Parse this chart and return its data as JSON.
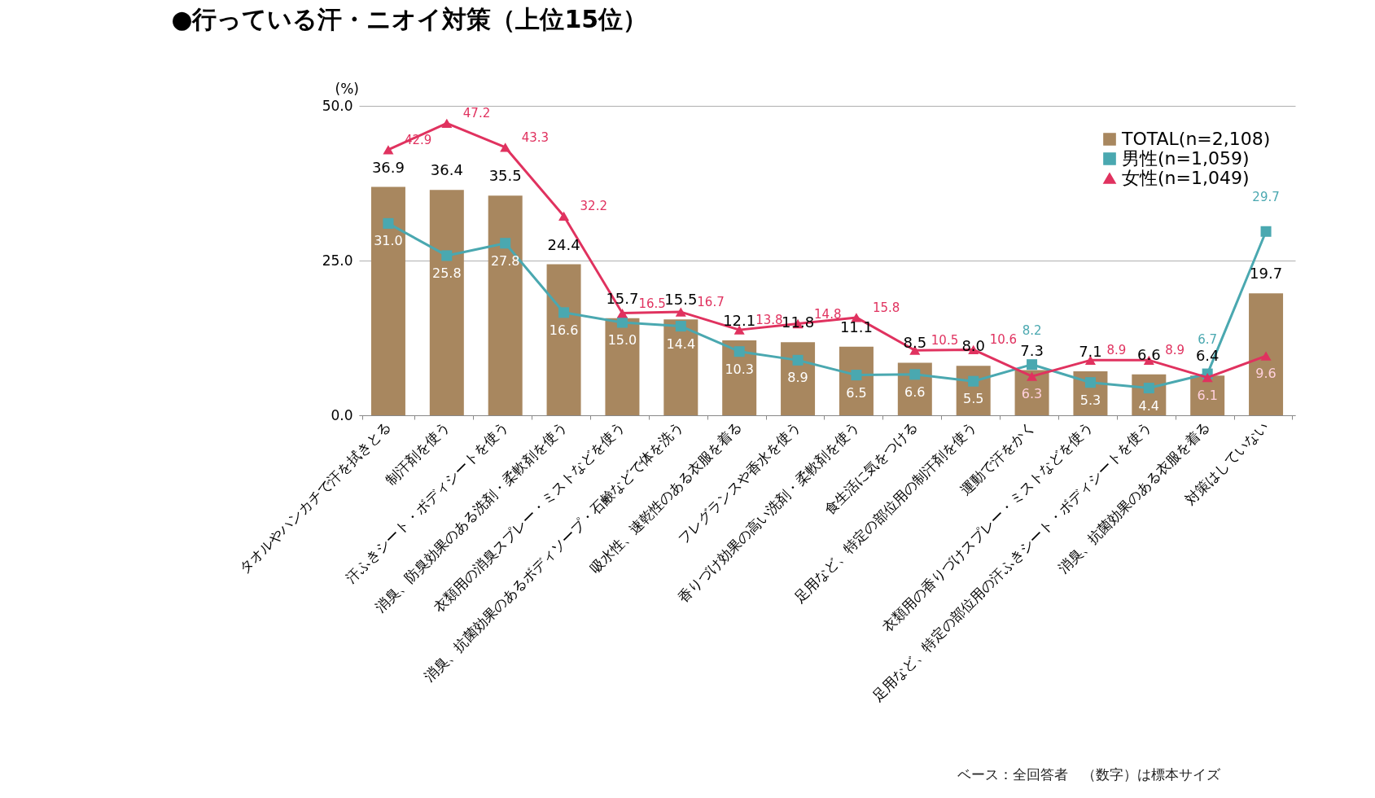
{
  "chart_data": {
    "type": "bar",
    "title": "●行っている汗・ニオイ対策（上位15位）",
    "ylabel": "(%)",
    "categories": [
      "タオルやハンカチで汗を拭きとる",
      "制汗剤を使う",
      "汗ふきシート・ボディシートを使う",
      "消臭、防臭効果のある洗剤・柔軟剤を使う",
      "衣類用の消臭スプレー・ミストなどを使う",
      "消臭、抗菌効果のあるボディソープ・石鹸などで体を洗う",
      "吸水性、速乾性のある衣服を着る",
      "フレグランスや香水を使う",
      "香りづけ効果の高い洗剤・柔軟剤を使う",
      "食生活に気をつける",
      "足用など、特定の部位用の制汗剤を使う",
      "運動で汗をかく",
      "衣類用の香りづけスプレー・ミストなどを使う",
      "足用など、特定の部位用の汗ふきシート・ボディシートを使う",
      "消臭、抗菌効果のある衣服を着る",
      "対策はしていない"
    ],
    "series": [
      {
        "name": "TOTAL(n=2,108)",
        "color": "#a8875f",
        "values": [
          36.9,
          36.4,
          35.5,
          24.4,
          15.7,
          15.5,
          12.1,
          11.8,
          11.1,
          8.5,
          8.0,
          7.3,
          7.1,
          6.6,
          6.4,
          19.7
        ],
        "value_labels": [
          "36.9",
          "36.4",
          "35.5",
          "24.4",
          "15.7",
          "15.5",
          "12.1",
          "11.8",
          "11.1",
          "8.5",
          "8.0",
          "7.3",
          "7.1",
          "6.6",
          "6.4",
          "19.7"
        ]
      },
      {
        "name": "男性(n=1,059)",
        "type": "line",
        "marker": "square",
        "color": "#4aa8b0",
        "values": [
          31.0,
          25.8,
          27.8,
          16.6,
          15.0,
          14.4,
          10.3,
          8.9,
          6.5,
          6.6,
          5.5,
          8.2,
          5.3,
          4.4,
          6.7,
          29.7
        ],
        "value_labels": [
          "31.0",
          "25.8",
          "27.8",
          "16.6",
          "15.0",
          "14.4",
          "10.3",
          "8.9",
          "6.5",
          "6.6",
          "5.5",
          "8.2",
          "5.3",
          "4.4",
          "6.7",
          "29.7"
        ]
      },
      {
        "name": "女性(n=1,049)",
        "type": "line",
        "marker": "triangle",
        "color": "#e0325f",
        "values": [
          42.9,
          47.2,
          43.3,
          32.2,
          16.5,
          16.7,
          13.8,
          14.8,
          15.8,
          10.5,
          10.6,
          6.3,
          8.9,
          8.9,
          6.1,
          9.6
        ],
        "value_labels": [
          "42.9",
          "47.2",
          "43.3",
          "32.2",
          "16.5",
          "16.7",
          "13.8",
          "14.8",
          "15.8",
          "10.5",
          "10.6",
          "6.3",
          "8.9",
          "8.9",
          "6.1",
          "9.6"
        ]
      }
    ],
    "ylim": [
      0,
      50
    ],
    "yticks": [
      {
        "value": 0,
        "label": "0.0"
      },
      {
        "value": 25,
        "label": "25.0"
      },
      {
        "value": 50,
        "label": "50.0"
      }
    ],
    "grid": "y",
    "legend": "top right",
    "annotations": [
      "ベース：全回答者　（数字）は標本サイズ"
    ]
  }
}
